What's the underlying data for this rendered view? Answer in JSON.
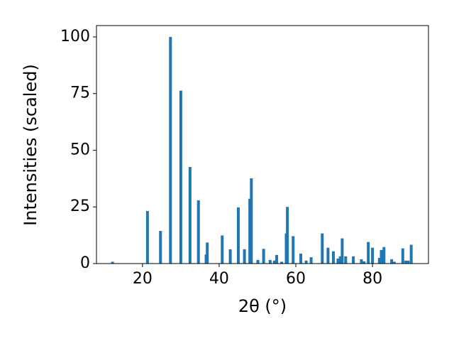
{
  "chart_data": {
    "type": "bar",
    "x_label": "2θ (°)",
    "y_label": "Intensities (scaled)",
    "color": "#1f77b4",
    "x": [
      12.2,
      21.3,
      24.7,
      27.3,
      30.0,
      32.4,
      34.6,
      36.6,
      36.9,
      40.8,
      42.9,
      45.0,
      46.6,
      48.0,
      48.4,
      50.1,
      51.6,
      53.3,
      54.4,
      55.0,
      56.3,
      57.5,
      57.8,
      59.3,
      61.3,
      62.7,
      64.0,
      66.9,
      68.4,
      69.8,
      71.0,
      71.6,
      72.1,
      73.0,
      75.0,
      77.1,
      77.8,
      78.9,
      80.0,
      81.8,
      82.3,
      83.0,
      85.0,
      85.7,
      87.9,
      88.7,
      89.3,
      90.1
    ],
    "values": [
      0.8,
      23.2,
      14.4,
      100,
      76.3,
      42.6,
      27.9,
      4.0,
      9.3,
      12.4,
      6.3,
      24.8,
      6.3,
      28.6,
      37.6,
      1.6,
      6.5,
      1.6,
      1.3,
      3.8,
      0.8,
      13.3,
      25.0,
      12.1,
      4.4,
      1.3,
      2.8,
      13.3,
      7.0,
      5.4,
      2.2,
      3.2,
      11.1,
      3.2,
      3.2,
      1.9,
      1.0,
      9.5,
      7.0,
      2.5,
      6.0,
      7.3,
      1.9,
      0.8,
      6.7,
      1.3,
      1.3,
      8.3
    ],
    "xlim": [
      8,
      94.6
    ],
    "ylim": [
      0,
      105
    ],
    "xticks": [
      20,
      40,
      60,
      80
    ],
    "yticks": [
      0,
      25,
      50,
      75,
      100
    ]
  }
}
